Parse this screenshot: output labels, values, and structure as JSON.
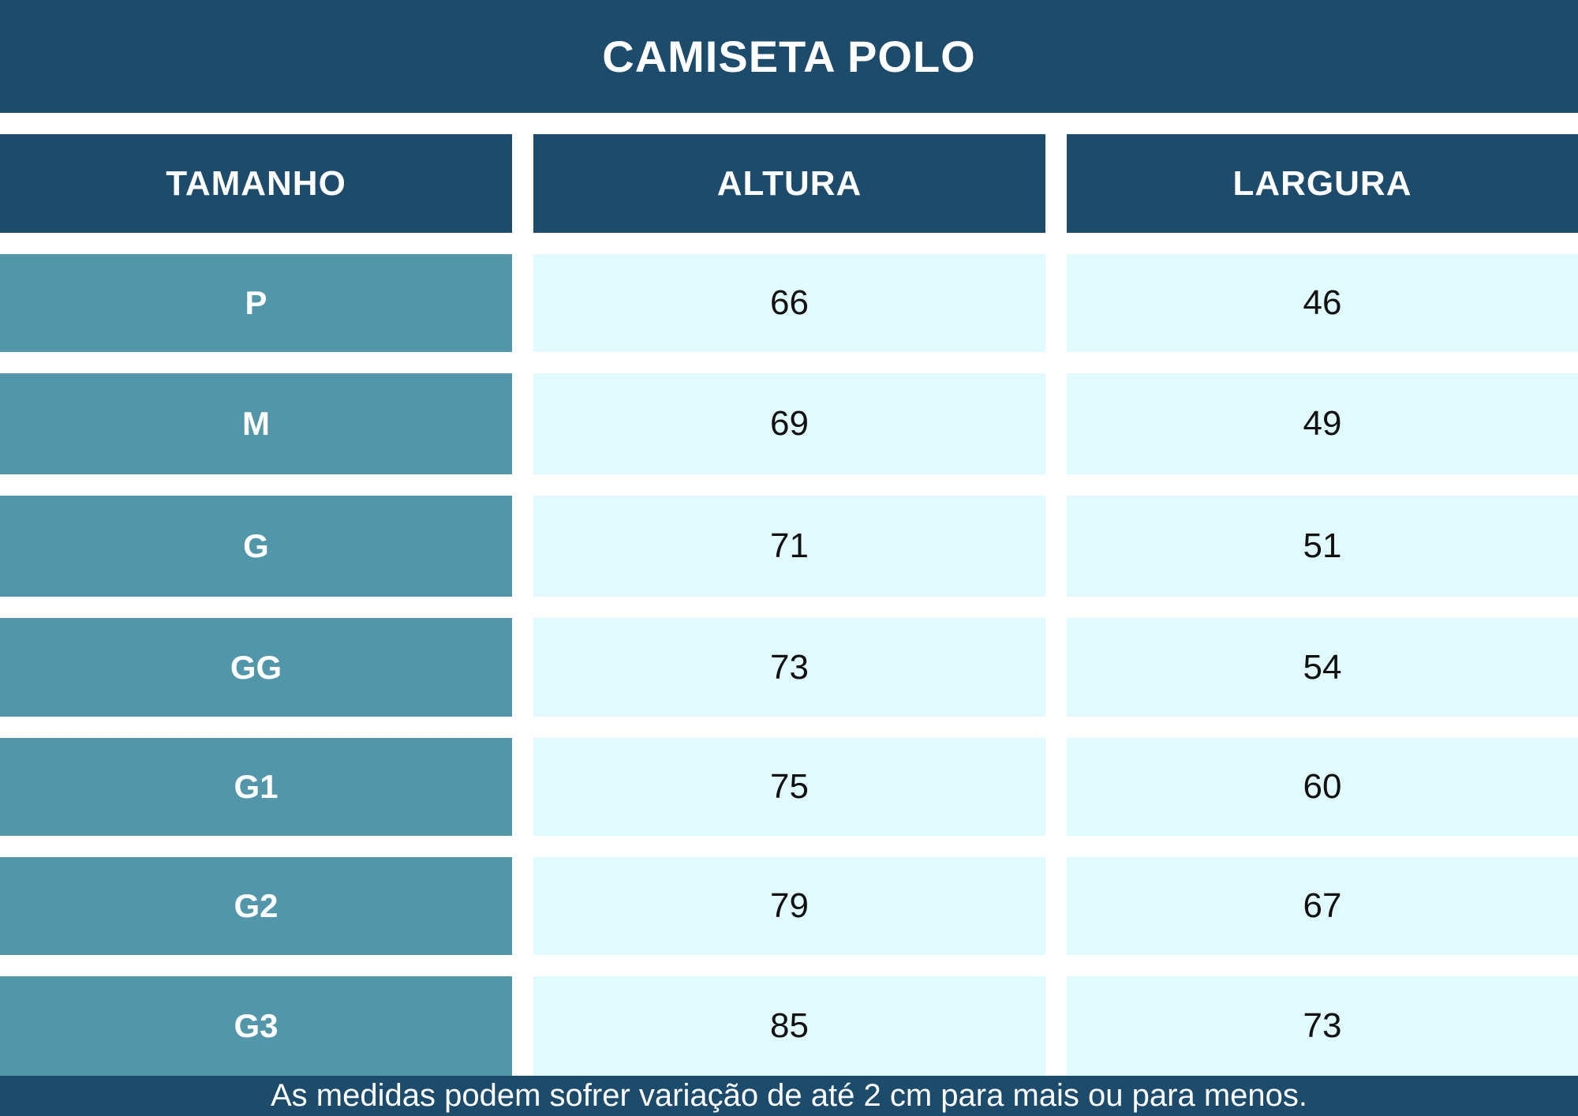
{
  "title": "CAMISETA POLO",
  "colors": {
    "dark_blue": "#1d4b6c",
    "teal": "#5196a9",
    "light_cyan": "#e0fafd"
  },
  "table": {
    "headers": [
      "TAMANHO",
      "ALTURA",
      "LARGURA"
    ],
    "rows": [
      {
        "size": "P",
        "altura": "66",
        "largura": "46"
      },
      {
        "size": "M",
        "altura": "69",
        "largura": "49"
      },
      {
        "size": "G",
        "altura": "71",
        "largura": "51"
      },
      {
        "size": "GG",
        "altura": "73",
        "largura": "54"
      },
      {
        "size": "G1",
        "altura": "75",
        "largura": "60"
      },
      {
        "size": "G2",
        "altura": "79",
        "largura": "67"
      },
      {
        "size": "G3",
        "altura": "85",
        "largura": "73"
      }
    ]
  },
  "footer": "As medidas podem sofrer variação de até 2 cm para mais ou para menos."
}
